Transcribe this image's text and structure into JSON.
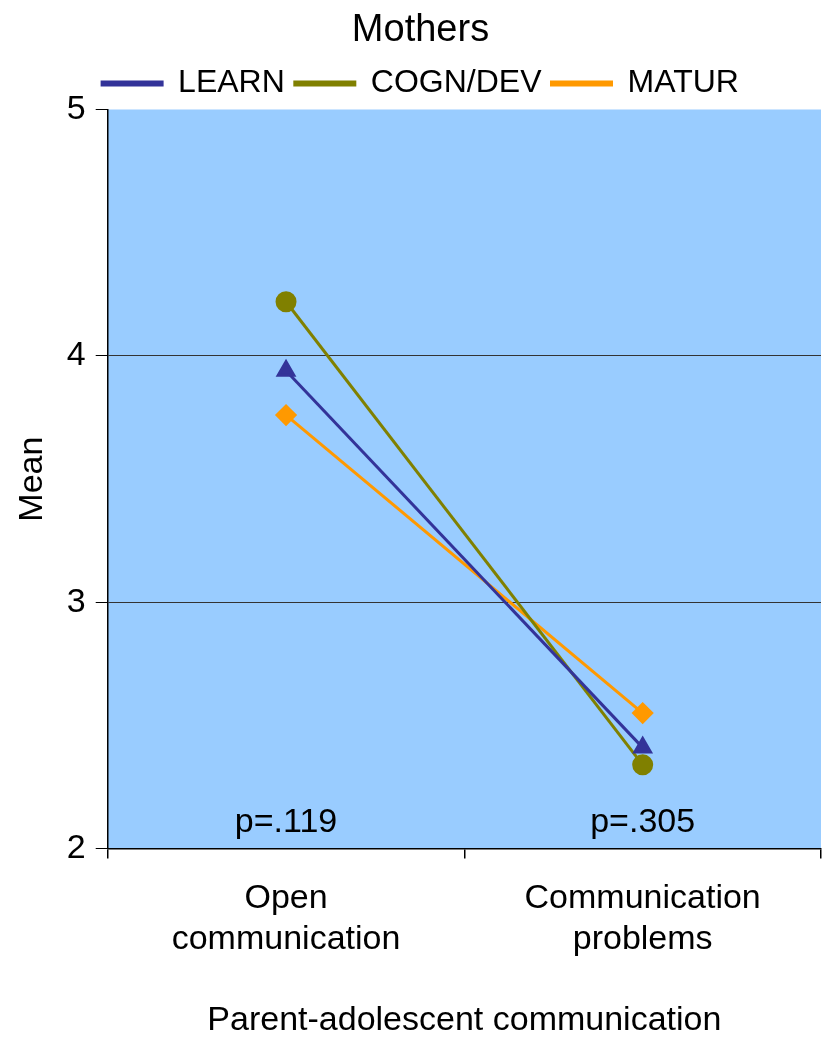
{
  "chart_data": {
    "type": "line",
    "title": "Mothers",
    "xlabel": "Parent-adolescent communication",
    "ylabel": "Mean",
    "categories": [
      "Open communication",
      "Communication problems"
    ],
    "series": [
      {
        "name": "LEARN",
        "color": "#333399",
        "values": [
          3.94,
          2.41
        ],
        "marker": "triangle"
      },
      {
        "name": "COGN/DEV",
        "color": "#808000",
        "values": [
          4.22,
          2.34
        ],
        "marker": "circle"
      },
      {
        "name": "MATUR",
        "color": "#ff9900",
        "values": [
          3.76,
          2.55
        ],
        "marker": "diamond"
      }
    ],
    "ylim": [
      2,
      5
    ],
    "yticks": [
      2,
      3,
      4,
      5
    ],
    "grid": "y",
    "legend": "top",
    "annotations": [
      "p=.119",
      "p=.305"
    ]
  }
}
